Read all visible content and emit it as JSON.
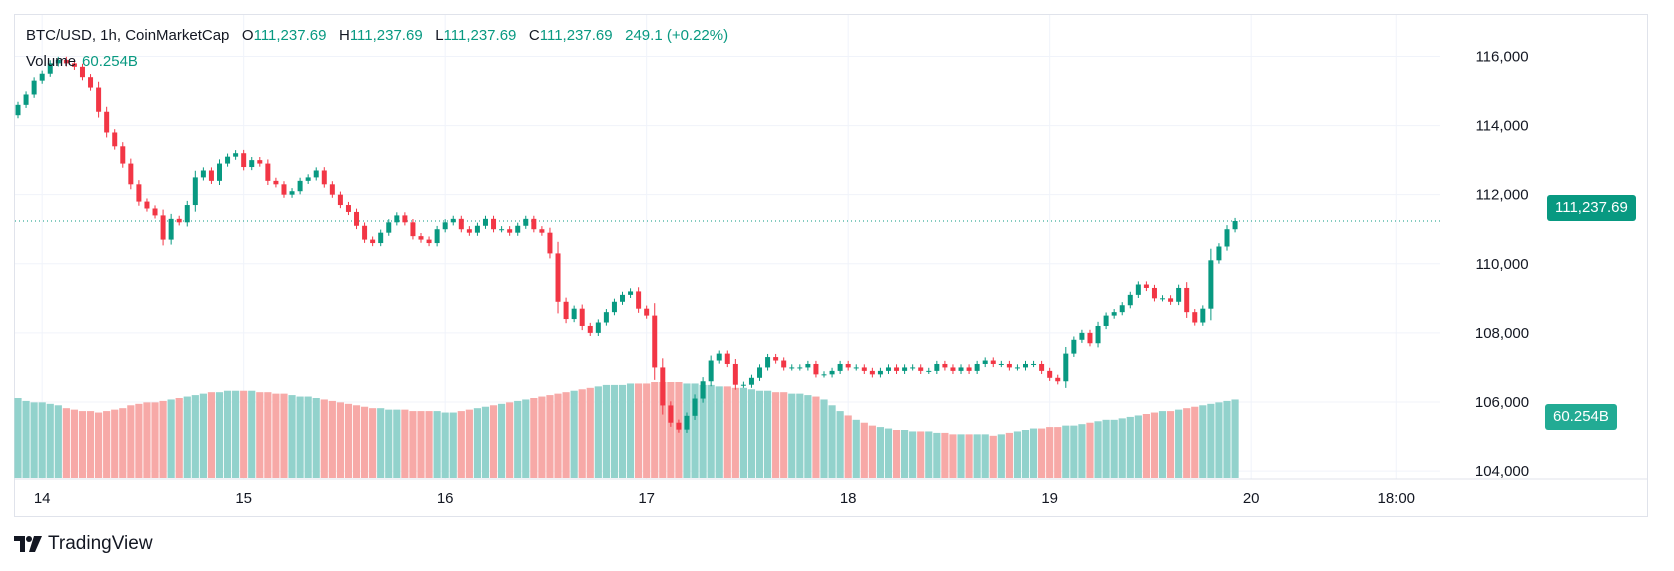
{
  "legend": {
    "symbol": "BTC/USD, 1h, CoinMarketCap",
    "o_label": "O",
    "open": "111,237.69",
    "h_label": "H",
    "high": "111,237.69",
    "l_label": "L",
    "low": "111,237.69",
    "c_label": "C",
    "close": "111,237.69",
    "change": "249.1 (+0.22%)",
    "volume_label": "Volume",
    "volume_value": "60.254B"
  },
  "last_price_tag": "111,237.69",
  "volume_tag": "60.254B",
  "brand": {
    "name": "TradingView"
  },
  "colors": {
    "up": "#089981",
    "down": "#f23645",
    "up_vol": "#92d2cc",
    "down_vol": "#f7a9a7",
    "grid": "#f0f3fa"
  },
  "chart_data": {
    "type": "candlestick",
    "title": "BTC/USD, 1h, CoinMarketCap",
    "x_ticks": [
      {
        "label": "14",
        "index": 3
      },
      {
        "label": "15",
        "index": 28
      },
      {
        "label": "16",
        "index": 53
      },
      {
        "label": "17",
        "index": 78
      },
      {
        "label": "18",
        "index": 103
      },
      {
        "label": "19",
        "index": 128
      },
      {
        "label": "20",
        "index": 153
      },
      {
        "label": "18:00",
        "index": 171
      }
    ],
    "y_ticks": [
      {
        "label": "116,000",
        "value": 116000
      },
      {
        "label": "114,000",
        "value": 114000
      },
      {
        "label": "112,000",
        "value": 112000
      },
      {
        "label": "110,000",
        "value": 110000
      },
      {
        "label": "108,000",
        "value": 108000
      },
      {
        "label": "106,000",
        "value": 106000
      },
      {
        "label": "104,000",
        "value": 104000
      }
    ],
    "ylim": [
      103800,
      117200
    ],
    "last_price": 111237.69,
    "close_path": [
      114600,
      114900,
      115300,
      115500,
      115800,
      115900,
      115800,
      115700,
      115400,
      115100,
      114400,
      113800,
      113400,
      112900,
      112300,
      111800,
      111600,
      111400,
      110700,
      111300,
      111200,
      111700,
      112500,
      112700,
      112400,
      112900,
      113100,
      113200,
      112800,
      113000,
      112900,
      112400,
      112300,
      112000,
      112100,
      112400,
      112500,
      112700,
      112300,
      112000,
      111700,
      111500,
      111100,
      110700,
      110600,
      110900,
      111200,
      111400,
      111200,
      110800,
      110700,
      110600,
      111000,
      111200,
      111300,
      111000,
      110900,
      111100,
      111300,
      111000,
      111000,
      110900,
      111100,
      111300,
      111000,
      110900,
      110300,
      108900,
      108400,
      108700,
      108200,
      108000,
      108300,
      108600,
      108900,
      109100,
      109200,
      108700,
      108500,
      107000,
      105900,
      105400,
      105200,
      105600,
      106100,
      106600,
      107200,
      107400,
      107100,
      106500,
      106500,
      106700,
      107000,
      107300,
      107200,
      107000,
      107000,
      107000,
      107100,
      106800,
      106800,
      106900,
      107100,
      107000,
      107000,
      106900,
      106800,
      106900,
      107000,
      106900,
      107000,
      107000,
      106900,
      106900,
      107100,
      107000,
      106900,
      107000,
      106900,
      107100,
      107200,
      107100,
      107100,
      107000,
      107000,
      107100,
      107100,
      106900,
      106700,
      106600,
      107400,
      107800,
      108000,
      107700,
      108200,
      108500,
      108600,
      108800,
      109100,
      109400,
      109300,
      109000,
      109000,
      108900,
      109300,
      108600,
      108300,
      108700,
      110100,
      110500,
      111000,
      111237.69
    ],
    "volume_path": [
      5.5,
      5.3,
      5.2,
      5.2,
      5.1,
      5.0,
      4.8,
      4.7,
      4.6,
      4.6,
      4.5,
      4.6,
      4.7,
      4.8,
      5.0,
      5.1,
      5.2,
      5.2,
      5.3,
      5.4,
      5.5,
      5.6,
      5.7,
      5.8,
      5.9,
      5.9,
      6.0,
      6.0,
      6.0,
      6.0,
      5.9,
      5.9,
      5.8,
      5.8,
      5.7,
      5.6,
      5.6,
      5.5,
      5.4,
      5.3,
      5.2,
      5.1,
      5.0,
      4.9,
      4.8,
      4.8,
      4.7,
      4.7,
      4.7,
      4.6,
      4.6,
      4.6,
      4.6,
      4.5,
      4.5,
      4.6,
      4.7,
      4.8,
      4.9,
      5.0,
      5.1,
      5.2,
      5.3,
      5.4,
      5.5,
      5.6,
      5.7,
      5.8,
      5.9,
      6.0,
      6.1,
      6.2,
      6.3,
      6.4,
      6.4,
      6.4,
      6.5,
      6.5,
      6.5,
      6.6,
      6.6,
      6.6,
      6.6,
      6.5,
      6.5,
      6.4,
      6.4,
      6.3,
      6.3,
      6.2,
      6.2,
      6.1,
      6.0,
      6.0,
      5.9,
      5.9,
      5.8,
      5.8,
      5.7,
      5.6,
      5.4,
      5.0,
      4.6,
      4.3,
      4.0,
      3.8,
      3.6,
      3.5,
      3.4,
      3.3,
      3.3,
      3.2,
      3.2,
      3.2,
      3.1,
      3.1,
      3.0,
      3.0,
      3.0,
      3.0,
      3.0,
      2.9,
      3.0,
      3.1,
      3.2,
      3.3,
      3.4,
      3.4,
      3.5,
      3.5,
      3.6,
      3.6,
      3.7,
      3.8,
      3.9,
      4.0,
      4.0,
      4.1,
      4.2,
      4.3,
      4.4,
      4.5,
      4.6,
      4.6,
      4.7,
      4.8,
      4.9,
      5.0,
      5.1,
      5.2,
      5.3,
      5.4
    ]
  }
}
